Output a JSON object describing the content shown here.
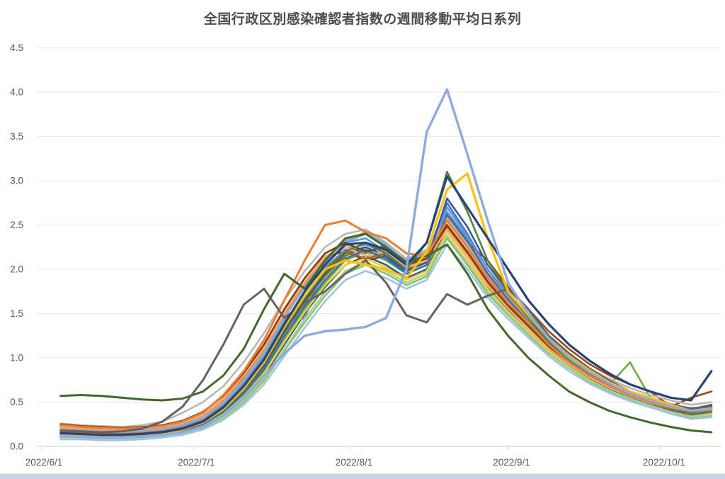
{
  "colors": {
    "background": "#ffffff",
    "title_text": "#4d4d4d",
    "axis_text": "#595959",
    "gridline": "#e9e9e9",
    "axis_line": "#d6d6d6",
    "bottom_strip": "#ccd5e8"
  },
  "chart_data": {
    "type": "line",
    "title": "全国行政区別感染確認者指数の週間移動平均日系列",
    "xlabel": "",
    "ylabel": "",
    "ylim": [
      0,
      4.5
    ],
    "grid": "horizontal",
    "legend": "none",
    "y_tick_labels": [
      "0.0",
      "0.5",
      "1.0",
      "1.5",
      "2.0",
      "2.5",
      "3.0",
      "3.5",
      "4.0",
      "4.5"
    ],
    "x_ticks": [
      {
        "label": "2022/6/1",
        "day": 0
      },
      {
        "label": "2022/7/1",
        "day": 30
      },
      {
        "label": "2022/8/1",
        "day": 61
      },
      {
        "label": "2022/9/1",
        "day": 92
      },
      {
        "label": "2022/10/1",
        "day": 122
      }
    ],
    "x_start_day": 4,
    "x_step_days": 4,
    "n_points": 33,
    "series_count": 27,
    "series": [
      {
        "color": "#4472C4",
        "w": 2.6,
        "values": [
          0.2,
          0.18,
          0.17,
          0.16,
          0.17,
          0.19,
          0.24,
          0.33,
          0.5,
          0.75,
          1.05,
          1.45,
          1.8,
          2.1,
          2.25,
          2.18,
          2.28,
          2.05,
          2.15,
          2.75,
          2.4,
          2.0,
          1.7,
          1.45,
          1.2,
          1.0,
          0.85,
          0.72,
          0.6,
          0.52,
          0.44,
          0.38,
          0.42
        ]
      },
      {
        "color": "#A5A5A5",
        "w": 2.6,
        "values": [
          0.16,
          0.15,
          0.14,
          0.14,
          0.15,
          0.17,
          0.21,
          0.3,
          0.46,
          0.7,
          1.0,
          1.4,
          1.5,
          2.05,
          2.3,
          2.4,
          2.25,
          2.1,
          2.2,
          2.6,
          2.3,
          1.95,
          1.65,
          1.4,
          1.18,
          0.98,
          0.82,
          0.7,
          0.6,
          0.55,
          0.48,
          0.42,
          0.46
        ]
      },
      {
        "color": "#5B9BD5",
        "w": 2.6,
        "values": [
          0.18,
          0.17,
          0.16,
          0.15,
          0.16,
          0.18,
          0.22,
          0.31,
          0.48,
          0.72,
          1.02,
          1.42,
          1.6,
          2.08,
          2.3,
          2.35,
          2.2,
          2.0,
          2.1,
          2.65,
          2.35,
          1.95,
          1.68,
          1.42,
          1.18,
          0.98,
          0.82,
          0.7,
          0.6,
          0.52,
          0.45,
          0.4,
          0.44
        ]
      },
      {
        "color": "#70AD47",
        "w": 2.6,
        "values": [
          0.12,
          0.11,
          0.11,
          0.1,
          0.11,
          0.13,
          0.17,
          0.24,
          0.38,
          0.58,
          0.85,
          1.2,
          1.55,
          1.85,
          2.1,
          2.2,
          2.1,
          1.95,
          2.05,
          2.5,
          2.2,
          1.85,
          1.58,
          1.35,
          1.12,
          0.94,
          0.78,
          0.7,
          0.95,
          0.55,
          0.44,
          0.38,
          0.4
        ]
      },
      {
        "color": "#9E480E",
        "w": 2.6,
        "values": [
          0.22,
          0.2,
          0.19,
          0.18,
          0.19,
          0.21,
          0.26,
          0.35,
          0.52,
          0.78,
          1.1,
          1.5,
          1.85,
          2.15,
          2.2,
          2.1,
          2.15,
          1.95,
          2.05,
          2.6,
          2.3,
          2.1,
          1.8,
          1.55,
          1.3,
          1.1,
          0.93,
          0.8,
          0.7,
          0.62,
          0.45,
          0.55,
          0.62
        ]
      },
      {
        "color": "#997300",
        "w": 2.6,
        "values": [
          0.13,
          0.12,
          0.12,
          0.11,
          0.12,
          0.14,
          0.18,
          0.26,
          0.4,
          0.62,
          0.9,
          1.28,
          1.62,
          1.92,
          2.15,
          2.25,
          2.15,
          1.98,
          2.08,
          2.55,
          2.25,
          1.9,
          1.62,
          1.38,
          1.15,
          0.96,
          0.8,
          0.68,
          0.58,
          0.5,
          0.43,
          0.37,
          0.4
        ]
      },
      {
        "color": "#255E91",
        "w": 2.6,
        "values": [
          0.1,
          0.1,
          0.09,
          0.09,
          0.1,
          0.12,
          0.15,
          0.22,
          0.35,
          0.55,
          0.8,
          1.15,
          1.5,
          1.8,
          2.05,
          2.15,
          2.05,
          1.9,
          2.0,
          2.45,
          2.15,
          1.8,
          1.55,
          1.32,
          1.1,
          0.92,
          0.77,
          0.65,
          0.55,
          0.47,
          0.4,
          0.35,
          0.38
        ]
      },
      {
        "color": "#698ED0",
        "w": 2.6,
        "values": [
          0.17,
          0.16,
          0.15,
          0.15,
          0.16,
          0.18,
          0.22,
          0.3,
          0.46,
          0.7,
          1.0,
          1.38,
          1.45,
          2.02,
          2.22,
          2.28,
          2.18,
          2.02,
          2.12,
          2.7,
          2.38,
          2.0,
          1.72,
          1.45,
          1.2,
          1.0,
          0.84,
          0.71,
          0.61,
          0.53,
          0.46,
          0.41,
          0.45
        ]
      },
      {
        "color": "#F1975A",
        "w": 2.6,
        "values": [
          0.21,
          0.19,
          0.18,
          0.17,
          0.18,
          0.2,
          0.25,
          0.34,
          0.51,
          0.76,
          1.08,
          1.48,
          1.82,
          2.12,
          2.28,
          2.2,
          2.25,
          2.08,
          2.15,
          2.62,
          2.32,
          1.96,
          1.68,
          1.44,
          1.2,
          1.0,
          0.85,
          0.72,
          0.62,
          0.54,
          0.47,
          0.42,
          0.46
        ]
      },
      {
        "color": "#B7B7B7",
        "w": 2.6,
        "values": [
          0.26,
          0.24,
          0.23,
          0.22,
          0.24,
          0.28,
          0.38,
          0.5,
          0.68,
          0.95,
          1.28,
          1.65,
          1.98,
          2.25,
          2.4,
          2.45,
          2.3,
          2.12,
          2.22,
          2.58,
          2.28,
          1.92,
          1.65,
          1.42,
          1.2,
          1.02,
          0.88,
          0.76,
          0.66,
          0.58,
          0.52,
          0.47,
          0.5
        ]
      },
      {
        "color": "#FFCD33",
        "w": 2.6,
        "values": [
          0.11,
          0.1,
          0.1,
          0.09,
          0.1,
          0.12,
          0.16,
          0.23,
          0.36,
          0.56,
          0.82,
          1.18,
          1.52,
          1.82,
          2.05,
          2.12,
          2.02,
          1.88,
          1.98,
          2.42,
          2.12,
          1.78,
          1.52,
          1.3,
          1.08,
          0.9,
          0.75,
          0.63,
          0.54,
          0.46,
          0.39,
          0.33,
          0.36
        ]
      },
      {
        "color": "#7CAFDD",
        "w": 2.6,
        "values": [
          0.19,
          0.18,
          0.17,
          0.16,
          0.17,
          0.19,
          0.24,
          0.32,
          0.49,
          0.74,
          1.05,
          1.45,
          1.8,
          2.1,
          2.32,
          2.42,
          2.28,
          2.08,
          2.18,
          2.55,
          2.25,
          1.9,
          1.62,
          1.38,
          1.15,
          0.96,
          0.81,
          0.69,
          0.59,
          0.51,
          0.44,
          0.39,
          0.43
        ]
      },
      {
        "color": "#8CC168",
        "w": 2.6,
        "values": [
          0.09,
          0.09,
          0.08,
          0.08,
          0.09,
          0.11,
          0.14,
          0.2,
          0.32,
          0.5,
          0.74,
          1.08,
          1.4,
          1.7,
          1.95,
          2.05,
          1.95,
          1.82,
          1.92,
          2.35,
          2.05,
          1.72,
          1.48,
          1.26,
          1.05,
          0.88,
          0.73,
          0.62,
          0.53,
          0.45,
          0.38,
          0.32,
          0.34
        ]
      },
      {
        "color": "#335AA1",
        "w": 2.6,
        "values": [
          0.14,
          0.13,
          0.12,
          0.12,
          0.13,
          0.15,
          0.19,
          0.27,
          0.42,
          0.64,
          0.92,
          1.3,
          1.65,
          1.95,
          2.18,
          2.25,
          2.15,
          1.98,
          2.08,
          2.8,
          2.48,
          2.05,
          1.75,
          1.48,
          1.22,
          1.02,
          0.86,
          0.73,
          0.62,
          0.54,
          0.47,
          0.42,
          0.47
        ]
      },
      {
        "color": "#BB6013",
        "w": 2.6,
        "values": [
          0.16,
          0.15,
          0.14,
          0.14,
          0.15,
          0.17,
          0.21,
          0.29,
          0.45,
          0.68,
          0.97,
          1.35,
          1.7,
          2.0,
          2.2,
          2.12,
          2.18,
          2.0,
          2.1,
          2.48,
          2.18,
          1.85,
          1.58,
          1.35,
          1.12,
          0.94,
          0.79,
          0.67,
          0.57,
          0.49,
          0.42,
          0.37,
          0.41
        ]
      },
      {
        "color": "#F4B183",
        "w": 2.6,
        "values": [
          0.23,
          0.21,
          0.2,
          0.19,
          0.2,
          0.22,
          0.27,
          0.36,
          0.54,
          0.8,
          1.12,
          1.52,
          1.86,
          2.15,
          2.25,
          2.15,
          2.2,
          2.02,
          2.1,
          2.45,
          2.15,
          1.82,
          1.56,
          1.33,
          1.11,
          0.93,
          0.78,
          0.66,
          0.57,
          0.49,
          0.43,
          0.38,
          0.42
        ]
      },
      {
        "color": "#A9D18E",
        "w": 2.6,
        "values": [
          0.1,
          0.09,
          0.09,
          0.08,
          0.09,
          0.11,
          0.15,
          0.21,
          0.33,
          0.52,
          0.77,
          1.1,
          1.44,
          1.74,
          1.98,
          2.08,
          1.98,
          1.85,
          1.95,
          2.38,
          2.08,
          1.75,
          1.5,
          1.28,
          1.06,
          0.89,
          0.74,
          0.63,
          0.54,
          0.46,
          0.39,
          0.34,
          0.37
        ]
      },
      {
        "color": "#2E75B6",
        "w": 2.6,
        "values": [
          0.13,
          0.12,
          0.11,
          0.11,
          0.12,
          0.14,
          0.18,
          0.25,
          0.39,
          0.6,
          0.87,
          1.24,
          1.58,
          1.88,
          2.12,
          2.22,
          2.12,
          1.95,
          2.05,
          2.62,
          2.32,
          1.95,
          1.66,
          1.41,
          1.17,
          0.98,
          0.82,
          0.7,
          0.6,
          0.52,
          0.45,
          0.4,
          0.44
        ]
      },
      {
        "color": "#9DC3E6",
        "w": 2.6,
        "values": [
          0.08,
          0.08,
          0.07,
          0.07,
          0.08,
          0.1,
          0.13,
          0.19,
          0.3,
          0.47,
          0.7,
          1.02,
          1.34,
          1.64,
          1.88,
          1.98,
          1.9,
          1.78,
          1.88,
          2.28,
          2.0,
          1.68,
          1.44,
          1.23,
          1.02,
          0.85,
          0.71,
          0.6,
          0.51,
          0.44,
          0.37,
          0.31,
          0.33
        ]
      },
      {
        "color": "#843C0C",
        "w": 2.6,
        "values": [
          0.25,
          0.23,
          0.22,
          0.21,
          0.22,
          0.24,
          0.29,
          0.39,
          0.57,
          0.83,
          1.15,
          1.55,
          1.9,
          2.18,
          2.3,
          2.2,
          2.25,
          2.05,
          2.12,
          2.5,
          2.2,
          1.86,
          1.59,
          1.36,
          1.13,
          0.95,
          0.8,
          0.68,
          0.58,
          0.5,
          0.44,
          0.39,
          0.43
        ]
      },
      {
        "color": "#548235",
        "w": 2.6,
        "values": [
          0.15,
          0.14,
          0.13,
          0.13,
          0.14,
          0.16,
          0.2,
          0.28,
          0.43,
          0.66,
          0.95,
          1.33,
          1.68,
          1.98,
          2.2,
          2.3,
          2.18,
          2.0,
          2.3,
          3.1,
          2.65,
          2.1,
          1.75,
          1.45,
          1.18,
          0.97,
          0.81,
          0.68,
          0.58,
          0.5,
          0.43,
          0.38,
          0.42
        ]
      },
      {
        "color": "#ED7D31",
        "w": 3.0,
        "values": [
          0.24,
          0.22,
          0.21,
          0.2,
          0.21,
          0.23,
          0.28,
          0.38,
          0.58,
          0.85,
          1.2,
          1.65,
          2.1,
          2.5,
          2.55,
          2.42,
          2.35,
          2.18,
          2.15,
          2.55,
          2.25,
          1.9,
          1.62,
          1.4,
          1.15,
          0.95,
          0.8,
          0.68,
          0.58,
          0.5,
          0.44,
          0.4,
          0.45
        ]
      },
      {
        "color": "#43682B",
        "w": 3.0,
        "values": [
          0.57,
          0.58,
          0.57,
          0.55,
          0.53,
          0.52,
          0.54,
          0.62,
          0.8,
          1.1,
          1.55,
          1.95,
          1.78,
          2.1,
          2.35,
          2.4,
          2.25,
          2.08,
          2.15,
          2.28,
          1.95,
          1.55,
          1.25,
          1.0,
          0.8,
          0.62,
          0.5,
          0.4,
          0.33,
          0.27,
          0.22,
          0.18,
          0.16
        ]
      },
      {
        "color": "#636363",
        "w": 3.0,
        "values": [
          0.18,
          0.17,
          0.16,
          0.17,
          0.2,
          0.28,
          0.45,
          0.75,
          1.15,
          1.6,
          1.78,
          1.45,
          1.62,
          1.75,
          1.95,
          2.1,
          1.85,
          1.48,
          1.4,
          1.72,
          1.6,
          1.7,
          1.78,
          1.55,
          1.25,
          1.05,
          0.88,
          0.74,
          0.62,
          0.54,
          0.47,
          0.43,
          0.45
        ]
      },
      {
        "color": "#FFC000",
        "w": 3.2,
        "values": [
          0.14,
          0.13,
          0.12,
          0.12,
          0.13,
          0.15,
          0.19,
          0.27,
          0.42,
          0.65,
          0.95,
          1.35,
          1.7,
          2.0,
          2.1,
          2.05,
          2.0,
          1.9,
          2.2,
          2.9,
          3.08,
          2.35,
          1.75,
          1.48,
          1.22,
          1.02,
          0.86,
          0.72,
          0.62,
          0.55,
          0.47,
          0.4,
          0.43
        ]
      },
      {
        "color": "#264478",
        "w": 3.2,
        "values": [
          0.15,
          0.14,
          0.13,
          0.13,
          0.14,
          0.16,
          0.2,
          0.28,
          0.44,
          0.68,
          0.98,
          1.38,
          1.75,
          2.05,
          2.28,
          2.3,
          2.22,
          2.05,
          2.3,
          3.05,
          2.7,
          2.35,
          2.0,
          1.65,
          1.38,
          1.15,
          0.97,
          0.82,
          0.7,
          0.62,
          0.55,
          0.52,
          0.85
        ]
      },
      {
        "color": "#8FAADC",
        "w": 3.4,
        "values": [
          0.12,
          0.11,
          0.1,
          0.1,
          0.11,
          0.13,
          0.16,
          0.22,
          0.35,
          0.55,
          0.8,
          1.05,
          1.25,
          1.3,
          1.32,
          1.35,
          1.45,
          2.0,
          3.55,
          4.03,
          3.3,
          2.55,
          1.85,
          1.5,
          1.22,
          1.0,
          0.84,
          0.71,
          0.6,
          0.52,
          0.45,
          0.4,
          0.42
        ]
      }
    ]
  }
}
